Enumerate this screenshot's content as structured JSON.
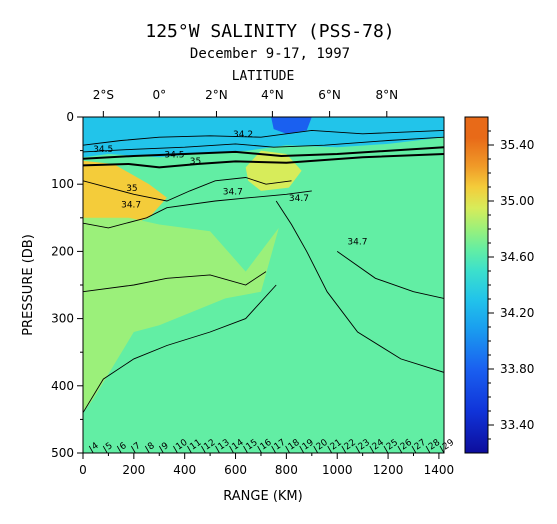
{
  "chart_data": {
    "type": "heatmap",
    "title": "125°W SALINITY (PSS-78)",
    "subtitle": "December 9-17, 1997",
    "xlabel": "RANGE (KM)",
    "ylabel": "PRESSURE (DB)",
    "top_axis_label": "LATITUDE",
    "xlim": [
      0,
      1420
    ],
    "ylim": [
      500,
      0
    ],
    "x_ticks": [
      "0",
      "200",
      "400",
      "600",
      "800",
      "1000",
      "1200",
      "1400"
    ],
    "y_ticks": [
      "0",
      "100",
      "200",
      "300",
      "400",
      "500"
    ],
    "latitude_ticks": [
      {
        "label": "2°S",
        "km": 80
      },
      {
        "label": "0°",
        "km": 300
      },
      {
        "label": "2°N",
        "km": 525
      },
      {
        "label": "4°N",
        "km": 745
      },
      {
        "label": "6°N",
        "km": 970
      },
      {
        "label": "8°N",
        "km": 1195
      }
    ],
    "colorbar": {
      "range": [
        33.2,
        35.6
      ],
      "ticks": [
        "35.40",
        "35.00",
        "34.60",
        "34.20",
        "33.80",
        "33.40"
      ],
      "colors": {
        "33.2": "#0d0d9c",
        "33.5": "#1034d9",
        "33.8": "#1a60f0",
        "34.1": "#1aa0ef",
        "34.3": "#22c4ea",
        "34.5": "#3ce0cc",
        "34.65": "#62eea4",
        "34.8": "#9bf07a",
        "34.95": "#d7ec5a",
        "35.1": "#f4cc3a",
        "35.25": "#f09a28",
        "35.45": "#e86a18"
      }
    },
    "contour_labels": [
      "34.5",
      "35",
      "34.7",
      "35",
      "34.7",
      "34.7",
      "34.7",
      "34.2",
      "34.5"
    ],
    "stations": [
      "4",
      "5",
      "6",
      "7",
      "8",
      "9",
      "10",
      "11",
      "12",
      "13",
      "14",
      "15",
      "16",
      "17",
      "18",
      "19",
      "20",
      "21",
      "22",
      "23",
      "24",
      "25",
      "26",
      "27",
      "28",
      "29"
    ],
    "regions": [
      {
        "name": "surface-fresh-layer",
        "salinity": 34.3,
        "depth_top": 0,
        "depth_bottom": 70,
        "km_start": 0,
        "km_end": 1420
      },
      {
        "name": "fresh-core-4N",
        "salinity": 33.8,
        "depth_top": 0,
        "depth_bottom": 25,
        "km_start": 740,
        "km_end": 900
      },
      {
        "name": "salty-core-2S",
        "salinity": 35.45,
        "depth_top": 80,
        "depth_bottom": 120,
        "km_start": 0,
        "km_end": 140
      },
      {
        "name": "salty-tongue",
        "salinity": 35.05,
        "depth_top": 60,
        "depth_bottom": 160,
        "km_start": 0,
        "km_end": 330
      },
      {
        "name": "salty-lens-3N",
        "salinity": 34.95,
        "depth_top": 50,
        "depth_bottom": 110,
        "km_start": 640,
        "km_end": 860
      },
      {
        "name": "upper-thermocline",
        "salinity": 34.8,
        "depth_top": 130,
        "depth_bottom": 420,
        "km_start": 0,
        "km_end": 800
      },
      {
        "name": "deep-water",
        "salinity": 34.65,
        "depth_top": 150,
        "depth_bottom": 500,
        "km_start": 0,
        "km_end": 1420
      }
    ]
  }
}
